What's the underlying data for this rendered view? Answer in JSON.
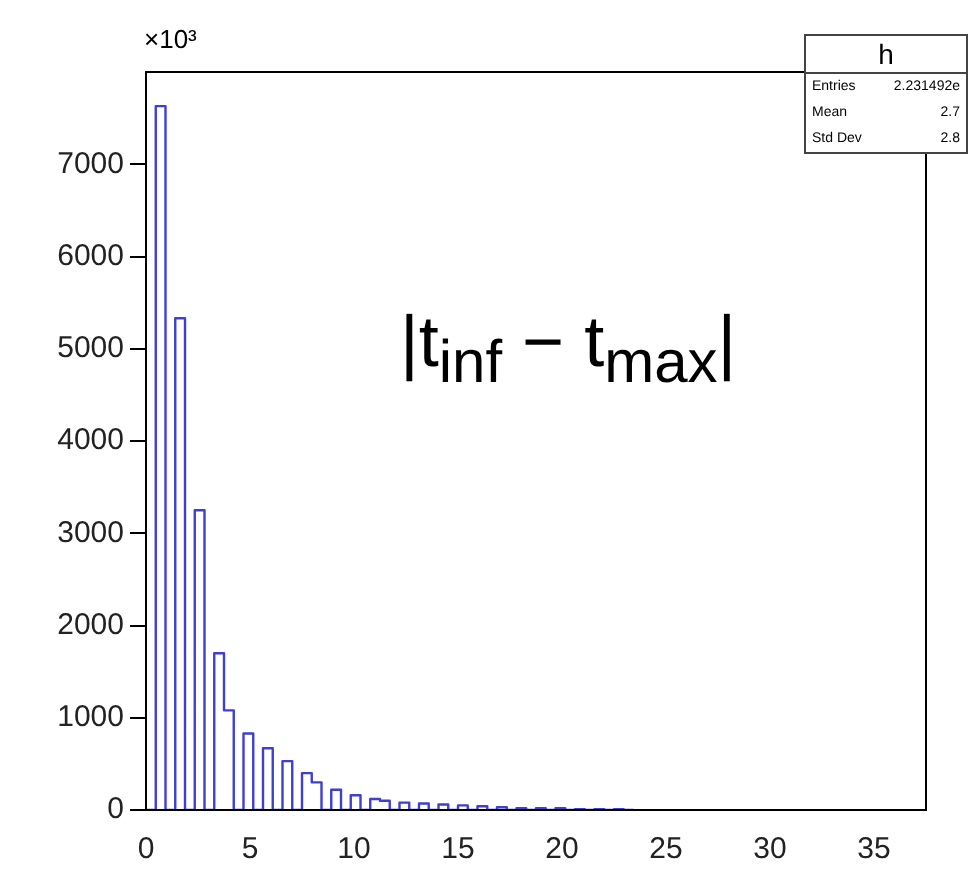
{
  "chart_data": {
    "type": "histogram",
    "bins": [
      0,
      0.46875,
      0.9375,
      1.40625,
      1.875,
      2.34375,
      2.8125,
      3.28125,
      3.75,
      4.21875,
      4.6875,
      5.15625,
      5.625,
      6.09375,
      6.5625,
      7.03125,
      7.5,
      7.96875,
      8.4375,
      8.90625,
      9.375,
      9.84375,
      10.3125,
      10.78125,
      11.25,
      11.71875,
      12.1875,
      12.65625,
      13.125,
      13.59375,
      14.0625,
      14.53125,
      15,
      15.46875,
      15.9375,
      16.40625,
      16.875,
      17.34375,
      17.8125,
      18.28125,
      18.75,
      19.21875,
      19.6875,
      20.15625,
      20.625,
      21.09375,
      21.5625,
      22.03125,
      22.5,
      22.96875,
      23.4375
    ],
    "values": [
      0,
      7630,
      0,
      5330,
      0,
      3250,
      0,
      1700,
      1080,
      0,
      830,
      0,
      670,
      0,
      530,
      0,
      400,
      300,
      0,
      220,
      0,
      160,
      0,
      120,
      100,
      0,
      80,
      0,
      70,
      0,
      60,
      0,
      50,
      0,
      40,
      0,
      30,
      0,
      20,
      0,
      20,
      0,
      20,
      0,
      10,
      0,
      10,
      0,
      10,
      0
    ],
    "color": "#3f3fd0",
    "xlim": [
      0,
      37.5
    ],
    "xticks": [
      0,
      5,
      10,
      15,
      20,
      25,
      30,
      35
    ],
    "ylim": [
      0,
      8000
    ],
    "yticks": [
      0,
      1000,
      2000,
      3000,
      4000,
      5000,
      6000,
      7000
    ],
    "annotations": [
      "×10³",
      "|t$_{inf}$ − t$_{max}$|",
      "h",
      "Entries",
      "2.231492e",
      "Mean",
      "2.7",
      "Std Dev",
      "2.8"
    ]
  }
}
